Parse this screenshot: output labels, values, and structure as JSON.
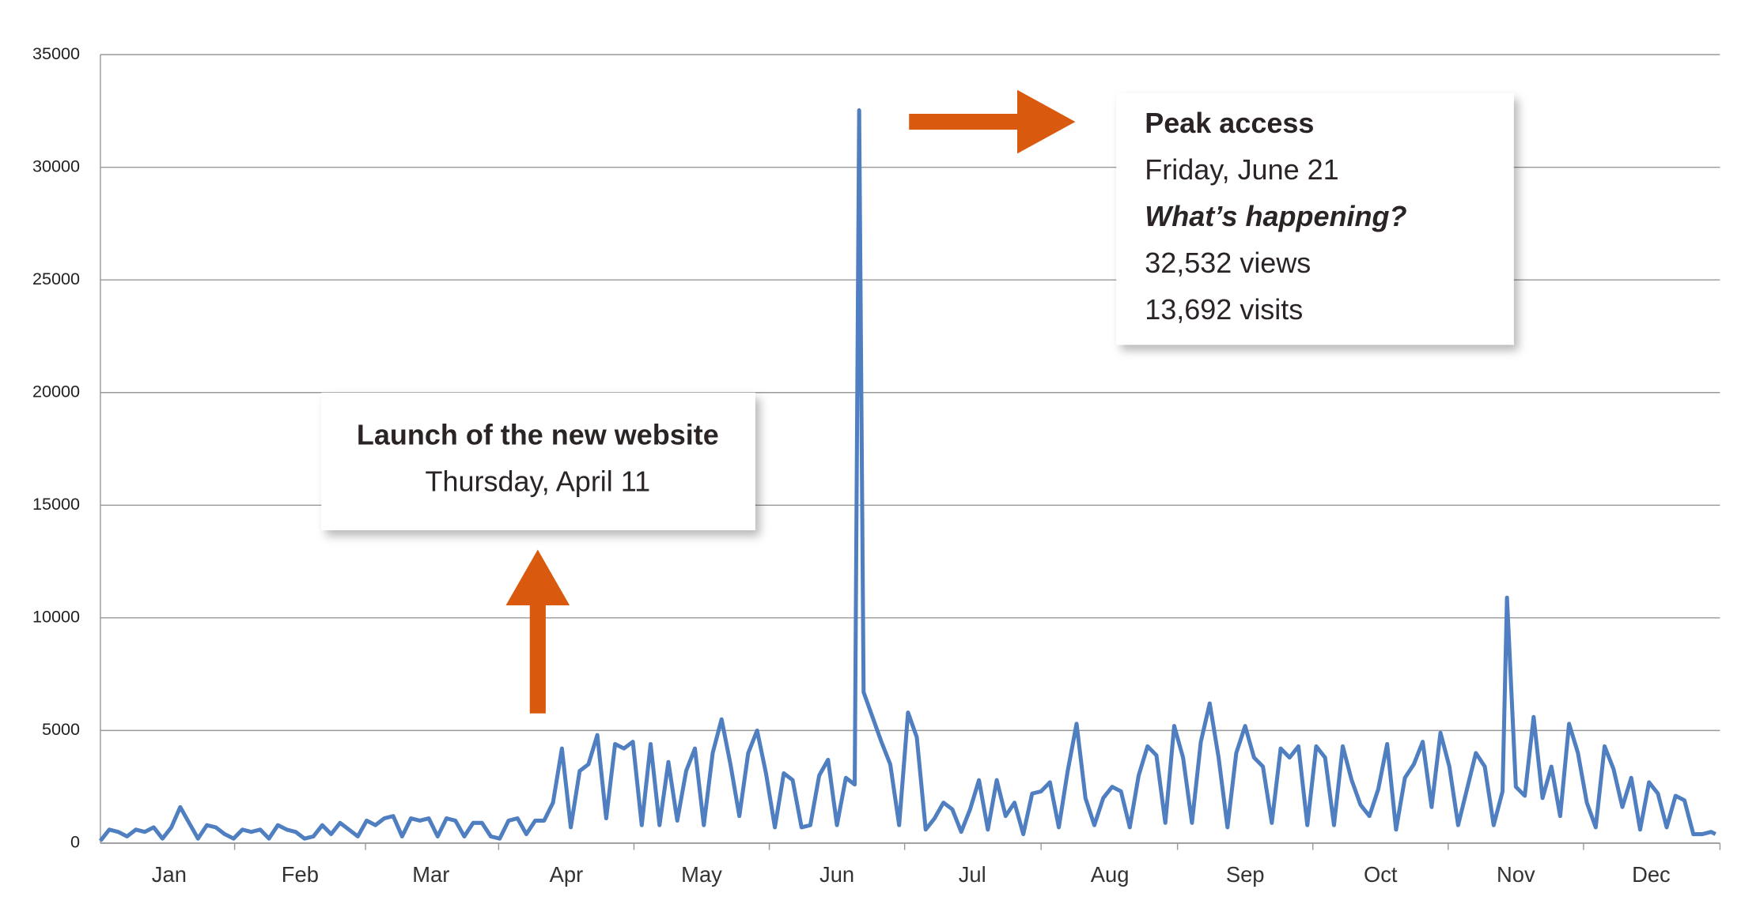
{
  "chart_data": {
    "type": "line",
    "xlim": [
      1,
      366
    ],
    "xticks": [
      {
        "value": 16.5,
        "label": "Jan"
      },
      {
        "value": 46,
        "label": "Feb"
      },
      {
        "value": 75.5,
        "label": "Mar"
      },
      {
        "value": 106,
        "label": "Apr"
      },
      {
        "value": 136.5,
        "label": "May"
      },
      {
        "value": 167,
        "label": "Jun"
      },
      {
        "value": 197.5,
        "label": "Jul"
      },
      {
        "value": 228.5,
        "label": "Aug"
      },
      {
        "value": 259,
        "label": "Sep"
      },
      {
        "value": 289.5,
        "label": "Oct"
      },
      {
        "value": 320,
        "label": "Nov"
      },
      {
        "value": 350.5,
        "label": "Dec"
      }
    ],
    "ylim": [
      0,
      35000
    ],
    "yticks": [
      0,
      5000,
      10000,
      15000,
      20000,
      25000,
      30000,
      35000
    ],
    "grid": true,
    "series": [
      {
        "color": "#4f7fc0",
        "x": [
          1,
          3,
          5,
          7,
          9,
          11,
          13,
          15,
          17,
          19,
          21,
          23,
          25,
          27,
          29,
          31,
          33,
          35,
          37,
          39,
          41,
          43,
          45,
          47,
          49,
          51,
          53,
          55,
          57,
          59,
          61,
          63,
          65,
          67,
          69,
          71,
          73,
          75,
          77,
          79,
          81,
          83,
          85,
          87,
          89,
          91,
          93,
          95,
          97,
          99,
          101,
          103,
          105,
          107,
          109,
          111,
          113,
          115,
          117,
          119,
          121,
          123,
          125,
          127,
          129,
          131,
          133,
          135,
          137,
          139,
          141,
          143,
          145,
          147,
          149,
          151,
          153,
          155,
          157,
          159,
          161,
          163,
          165,
          167,
          169,
          171,
          172,
          173,
          175,
          177,
          179,
          181,
          183,
          185,
          187,
          189,
          191,
          193,
          195,
          197,
          199,
          201,
          203,
          205,
          207,
          209,
          211,
          213,
          215,
          217,
          219,
          221,
          223,
          225,
          227,
          229,
          231,
          233,
          235,
          237,
          239,
          241,
          243,
          245,
          247,
          249,
          251,
          253,
          255,
          257,
          259,
          261,
          263,
          265,
          267,
          269,
          271,
          273,
          275,
          277,
          279,
          281,
          283,
          285,
          287,
          289,
          291,
          293,
          295,
          297,
          299,
          301,
          303,
          305,
          307,
          309,
          311,
          313,
          315,
          317,
          318,
          320,
          322,
          324,
          326,
          328,
          330,
          332,
          334,
          336,
          338,
          340,
          342,
          344,
          346,
          348,
          350,
          352,
          354,
          356,
          358,
          360,
          362,
          364,
          365
        ],
        "values": [
          100,
          600,
          500,
          300,
          600,
          500,
          700,
          200,
          700,
          1600,
          900,
          200,
          800,
          700,
          400,
          200,
          600,
          500,
          600,
          200,
          800,
          600,
          500,
          200,
          300,
          800,
          400,
          900,
          600,
          300,
          1000,
          800,
          1100,
          1200,
          300,
          1100,
          1000,
          1100,
          300,
          1100,
          1000,
          300,
          900,
          900,
          300,
          200,
          1000,
          1100,
          400,
          1000,
          1000,
          1800,
          4200,
          700,
          3200,
          3500,
          4800,
          1100,
          4400,
          4200,
          4500,
          800,
          4400,
          800,
          3600,
          1000,
          3200,
          4200,
          800,
          4000,
          5500,
          3500,
          1200,
          4000,
          5000,
          3100,
          700,
          3100,
          2800,
          700,
          800,
          3000,
          3700,
          800,
          2900,
          2600,
          32532,
          6700,
          5600,
          4500,
          3500,
          800,
          5800,
          4700,
          600,
          1100,
          1800,
          1500,
          500,
          1500,
          2800,
          600,
          2800,
          1200,
          1800,
          400,
          2200,
          2300,
          2700,
          700,
          3200,
          5300,
          2000,
          800,
          2000,
          2500,
          2300,
          700,
          3000,
          4300,
          3900,
          900,
          5200,
          3800,
          900,
          4500,
          6200,
          3800,
          700,
          4000,
          5200,
          3800,
          3400,
          900,
          4200,
          3800,
          4300,
          800,
          4300,
          3800,
          800,
          4300,
          2800,
          1700,
          1200,
          2400,
          4400,
          600,
          2900,
          3500,
          4500,
          1600,
          4900,
          3400,
          800,
          2400,
          4000,
          3400,
          800,
          2300,
          10900,
          2500,
          2100,
          5600,
          2000,
          3400,
          1200,
          5300,
          4000,
          1800,
          700,
          4300,
          3300,
          1600,
          2900,
          600,
          2700,
          2200,
          700,
          2100,
          1900,
          400,
          400,
          500,
          400
        ]
      }
    ],
    "annotations": [
      {
        "title": "Launch of the new website",
        "lines": [
          "Thursday, April 11"
        ]
      },
      {
        "title": "Peak access",
        "lines": [
          "Friday, June 21",
          "What’s happening?",
          "32,532 views",
          "13,692 visits"
        ]
      }
    ]
  }
}
